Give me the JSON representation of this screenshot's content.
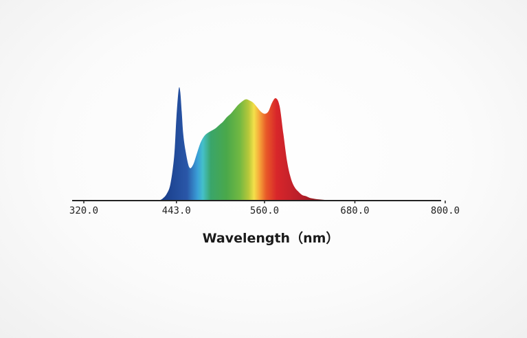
{
  "chart_data": {
    "type": "area",
    "title": "",
    "xlabel": "Wavelength（nm）",
    "ylabel": "",
    "xlim": [
      320,
      800
    ],
    "ylim": [
      0,
      1
    ],
    "grid": false,
    "legend": "none",
    "xticks": [
      {
        "value": 320,
        "label": "320.0"
      },
      {
        "value": 443,
        "label": "443.0"
      },
      {
        "value": 560,
        "label": "560.0"
      },
      {
        "value": 680,
        "label": "680.0"
      },
      {
        "value": 800,
        "label": "800.0"
      }
    ],
    "series": [
      {
        "x": [
          420,
          425,
          430,
          435,
          440,
          443,
          446,
          448,
          450,
          452,
          455,
          460,
          465,
          470,
          475,
          480,
          485,
          490,
          495,
          500,
          505,
          510,
          515,
          520,
          525,
          530,
          535,
          540,
          545,
          550,
          555,
          560,
          565,
          570,
          575,
          580,
          585,
          590,
          595,
          600,
          605,
          610,
          615,
          620,
          625,
          630,
          635,
          640,
          645,
          650,
          655,
          660,
          665,
          670,
          680,
          690,
          700
        ],
        "y": [
          0.0,
          0.02,
          0.06,
          0.15,
          0.4,
          0.75,
          1.0,
          0.98,
          0.8,
          0.6,
          0.45,
          0.3,
          0.32,
          0.42,
          0.52,
          0.58,
          0.61,
          0.63,
          0.65,
          0.68,
          0.71,
          0.75,
          0.78,
          0.82,
          0.86,
          0.89,
          0.91,
          0.9,
          0.88,
          0.84,
          0.8,
          0.78,
          0.8,
          0.88,
          0.92,
          0.85,
          0.6,
          0.35,
          0.2,
          0.12,
          0.08,
          0.05,
          0.04,
          0.025,
          0.018,
          0.012,
          0.009,
          0.006,
          0.004,
          0.002,
          0.001,
          0.0,
          0.0,
          0.0,
          0.0,
          0.0,
          0.0
        ]
      }
    ]
  }
}
